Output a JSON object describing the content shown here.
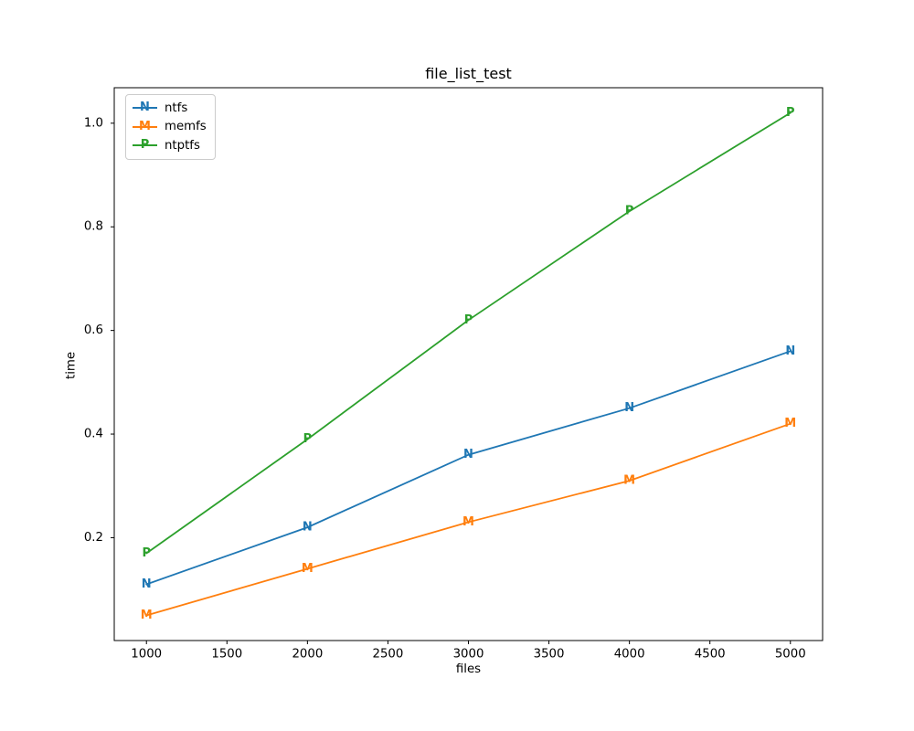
{
  "chart_data": {
    "type": "line",
    "title": "file_list_test",
    "xlabel": "files",
    "ylabel": "time",
    "x": [
      1000,
      2000,
      3000,
      4000,
      5000
    ],
    "series": [
      {
        "name": "ntfs",
        "marker": "N",
        "color": "#1f77b4",
        "values": [
          0.11,
          0.22,
          0.36,
          0.45,
          0.56
        ]
      },
      {
        "name": "memfs",
        "marker": "M",
        "color": "#ff7f0e",
        "values": [
          0.05,
          0.14,
          0.23,
          0.31,
          0.42
        ]
      },
      {
        "name": "ntptfs",
        "marker": "P",
        "color": "#2ca02c",
        "values": [
          0.17,
          0.39,
          0.62,
          0.83,
          1.02
        ]
      }
    ],
    "xticks": [
      1000,
      1500,
      2000,
      2500,
      3000,
      3500,
      4000,
      4500,
      5000
    ],
    "xtick_labels": [
      "1000",
      "1500",
      "2000",
      "2500",
      "3000",
      "3500",
      "4000",
      "4500",
      "5000"
    ],
    "yticks": [
      0.2,
      0.4,
      0.6,
      0.8,
      1.0
    ],
    "ytick_labels": [
      "0.2",
      "0.4",
      "0.6",
      "0.8",
      "1.0"
    ],
    "xlim": [
      800,
      5200
    ],
    "ylim": [
      0.0015,
      1.0685
    ],
    "grid": false,
    "legend_position": "upper left",
    "axis_color": "#000000",
    "background_color": "#ffffff"
  }
}
